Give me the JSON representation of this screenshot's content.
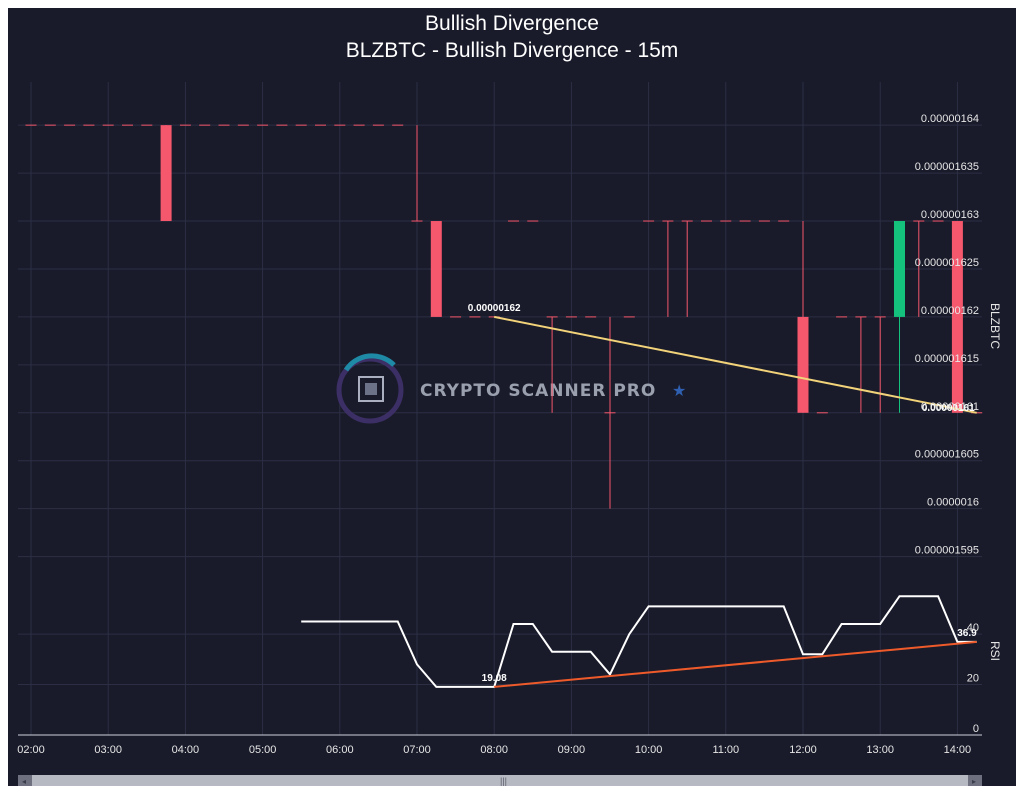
{
  "chart_data": {
    "type": "candlestick",
    "title": "Bullish Divergence",
    "subtitle": "BLZBTC - Bullish Divergence - 15m",
    "watermark": "CRYPTO SCANNER PRO",
    "x_ticks": [
      "02:00",
      "03:00",
      "04:00",
      "05:00",
      "06:00",
      "07:00",
      "08:00",
      "09:00",
      "10:00",
      "11:00",
      "12:00",
      "13:00",
      "14:00"
    ],
    "price_axis": {
      "label": "BLZBTC",
      "ylim": [
        1.5935e-06,
        1.6445e-06
      ],
      "ticks": [
        "0.000001595",
        "0.0000016",
        "0.000001605",
        "0.00000161",
        "0.000001615",
        "0.00000162",
        "0.000001625",
        "0.00000163",
        "0.000001635",
        "0.00000164"
      ]
    },
    "rsi_axis": {
      "label": "RSI",
      "ylim": [
        0,
        65
      ],
      "ticks": [
        "0",
        "20",
        "40"
      ]
    },
    "candles": [
      {
        "t": "02:00",
        "o": 1.64e-06,
        "h": 1.64e-06,
        "l": 1.64e-06,
        "c": 1.64e-06
      },
      {
        "t": "02:15",
        "o": 1.64e-06,
        "h": 1.64e-06,
        "l": 1.64e-06,
        "c": 1.64e-06
      },
      {
        "t": "02:30",
        "o": 1.64e-06,
        "h": 1.64e-06,
        "l": 1.64e-06,
        "c": 1.64e-06
      },
      {
        "t": "02:45",
        "o": 1.64e-06,
        "h": 1.64e-06,
        "l": 1.64e-06,
        "c": 1.64e-06
      },
      {
        "t": "03:00",
        "o": 1.64e-06,
        "h": 1.64e-06,
        "l": 1.64e-06,
        "c": 1.64e-06
      },
      {
        "t": "03:15",
        "o": 1.64e-06,
        "h": 1.64e-06,
        "l": 1.64e-06,
        "c": 1.64e-06
      },
      {
        "t": "03:30",
        "o": 1.64e-06,
        "h": 1.64e-06,
        "l": 1.64e-06,
        "c": 1.64e-06
      },
      {
        "t": "03:45",
        "o": 1.64e-06,
        "h": 1.64e-06,
        "l": 1.63e-06,
        "c": 1.63e-06
      },
      {
        "t": "04:00",
        "o": 1.64e-06,
        "h": 1.64e-06,
        "l": 1.64e-06,
        "c": 1.64e-06
      },
      {
        "t": "04:15",
        "o": 1.64e-06,
        "h": 1.64e-06,
        "l": 1.64e-06,
        "c": 1.64e-06
      },
      {
        "t": "04:30",
        "o": 1.64e-06,
        "h": 1.64e-06,
        "l": 1.64e-06,
        "c": 1.64e-06
      },
      {
        "t": "04:45",
        "o": 1.64e-06,
        "h": 1.64e-06,
        "l": 1.64e-06,
        "c": 1.64e-06
      },
      {
        "t": "05:00",
        "o": 1.64e-06,
        "h": 1.64e-06,
        "l": 1.64e-06,
        "c": 1.64e-06
      },
      {
        "t": "05:15",
        "o": 1.64e-06,
        "h": 1.64e-06,
        "l": 1.64e-06,
        "c": 1.64e-06
      },
      {
        "t": "05:30",
        "o": 1.64e-06,
        "h": 1.64e-06,
        "l": 1.64e-06,
        "c": 1.64e-06
      },
      {
        "t": "05:45",
        "o": 1.64e-06,
        "h": 1.64e-06,
        "l": 1.64e-06,
        "c": 1.64e-06
      },
      {
        "t": "06:00",
        "o": 1.64e-06,
        "h": 1.64e-06,
        "l": 1.64e-06,
        "c": 1.64e-06
      },
      {
        "t": "06:15",
        "o": 1.64e-06,
        "h": 1.64e-06,
        "l": 1.64e-06,
        "c": 1.64e-06
      },
      {
        "t": "06:30",
        "o": 1.64e-06,
        "h": 1.64e-06,
        "l": 1.64e-06,
        "c": 1.64e-06
      },
      {
        "t": "06:45",
        "o": 1.64e-06,
        "h": 1.64e-06,
        "l": 1.64e-06,
        "c": 1.64e-06
      },
      {
        "t": "07:00",
        "o": 1.63e-06,
        "h": 1.64e-06,
        "l": 1.63e-06,
        "c": 1.63e-06
      },
      {
        "t": "07:15",
        "o": 1.63e-06,
        "h": 1.63e-06,
        "l": 1.62e-06,
        "c": 1.62e-06
      },
      {
        "t": "07:30",
        "o": 1.62e-06,
        "h": 1.62e-06,
        "l": 1.62e-06,
        "c": 1.62e-06
      },
      {
        "t": "07:45",
        "o": 1.62e-06,
        "h": 1.62e-06,
        "l": 1.62e-06,
        "c": 1.62e-06
      },
      {
        "t": "08:00",
        "o": 1.62e-06,
        "h": 1.62e-06,
        "l": 1.62e-06,
        "c": 1.62e-06
      },
      {
        "t": "08:15",
        "o": 1.63e-06,
        "h": 1.63e-06,
        "l": 1.63e-06,
        "c": 1.63e-06
      },
      {
        "t": "08:30",
        "o": 1.63e-06,
        "h": 1.63e-06,
        "l": 1.63e-06,
        "c": 1.63e-06
      },
      {
        "t": "08:45",
        "o": 1.62e-06,
        "h": 1.62e-06,
        "l": 1.61e-06,
        "c": 1.62e-06
      },
      {
        "t": "09:00",
        "o": 1.62e-06,
        "h": 1.62e-06,
        "l": 1.62e-06,
        "c": 1.62e-06
      },
      {
        "t": "09:15",
        "o": 1.62e-06,
        "h": 1.62e-06,
        "l": 1.62e-06,
        "c": 1.62e-06
      },
      {
        "t": "09:30",
        "o": 1.61e-06,
        "h": 1.62e-06,
        "l": 1.6e-06,
        "c": 1.61e-06
      },
      {
        "t": "09:45",
        "o": 1.62e-06,
        "h": 1.62e-06,
        "l": 1.62e-06,
        "c": 1.62e-06
      },
      {
        "t": "10:00",
        "o": 1.63e-06,
        "h": 1.63e-06,
        "l": 1.63e-06,
        "c": 1.63e-06
      },
      {
        "t": "10:15",
        "o": 1.63e-06,
        "h": 1.63e-06,
        "l": 1.62e-06,
        "c": 1.63e-06
      },
      {
        "t": "10:30",
        "o": 1.63e-06,
        "h": 1.63e-06,
        "l": 1.62e-06,
        "c": 1.63e-06
      },
      {
        "t": "10:45",
        "o": 1.63e-06,
        "h": 1.63e-06,
        "l": 1.63e-06,
        "c": 1.63e-06
      },
      {
        "t": "11:00",
        "o": 1.63e-06,
        "h": 1.63e-06,
        "l": 1.63e-06,
        "c": 1.63e-06
      },
      {
        "t": "11:15",
        "o": 1.63e-06,
        "h": 1.63e-06,
        "l": 1.63e-06,
        "c": 1.63e-06
      },
      {
        "t": "11:30",
        "o": 1.63e-06,
        "h": 1.63e-06,
        "l": 1.63e-06,
        "c": 1.63e-06
      },
      {
        "t": "11:45",
        "o": 1.63e-06,
        "h": 1.63e-06,
        "l": 1.63e-06,
        "c": 1.63e-06
      },
      {
        "t": "12:00",
        "o": 1.62e-06,
        "h": 1.63e-06,
        "l": 1.61e-06,
        "c": 1.61e-06
      },
      {
        "t": "12:15",
        "o": 1.61e-06,
        "h": 1.61e-06,
        "l": 1.61e-06,
        "c": 1.61e-06
      },
      {
        "t": "12:30",
        "o": 1.62e-06,
        "h": 1.62e-06,
        "l": 1.62e-06,
        "c": 1.62e-06
      },
      {
        "t": "12:45",
        "o": 1.62e-06,
        "h": 1.62e-06,
        "l": 1.61e-06,
        "c": 1.62e-06
      },
      {
        "t": "13:00",
        "o": 1.62e-06,
        "h": 1.62e-06,
        "l": 1.61e-06,
        "c": 1.62e-06
      },
      {
        "t": "13:15",
        "o": 1.62e-06,
        "h": 1.63e-06,
        "l": 1.61e-06,
        "c": 1.63e-06
      },
      {
        "t": "13:30",
        "o": 1.63e-06,
        "h": 1.63e-06,
        "l": 1.62e-06,
        "c": 1.63e-06
      },
      {
        "t": "13:45",
        "o": 1.63e-06,
        "h": 1.63e-06,
        "l": 1.63e-06,
        "c": 1.63e-06
      },
      {
        "t": "14:00",
        "o": 1.63e-06,
        "h": 1.63e-06,
        "l": 1.61e-06,
        "c": 1.61e-06
      },
      {
        "t": "14:15",
        "o": 1.61e-06,
        "h": 1.61e-06,
        "l": 1.61e-06,
        "c": 1.61e-06
      }
    ],
    "rsi": [
      {
        "t": "05:30",
        "v": 45
      },
      {
        "t": "05:45",
        "v": 45
      },
      {
        "t": "06:00",
        "v": 45
      },
      {
        "t": "06:15",
        "v": 45
      },
      {
        "t": "06:30",
        "v": 45
      },
      {
        "t": "06:45",
        "v": 45
      },
      {
        "t": "07:00",
        "v": 28
      },
      {
        "t": "07:15",
        "v": 19.08
      },
      {
        "t": "07:30",
        "v": 19.08
      },
      {
        "t": "07:45",
        "v": 19.08
      },
      {
        "t": "08:00",
        "v": 19.08
      },
      {
        "t": "08:15",
        "v": 44
      },
      {
        "t": "08:30",
        "v": 44
      },
      {
        "t": "08:45",
        "v": 33
      },
      {
        "t": "09:00",
        "v": 33
      },
      {
        "t": "09:15",
        "v": 33
      },
      {
        "t": "09:30",
        "v": 24
      },
      {
        "t": "09:45",
        "v": 40
      },
      {
        "t": "10:00",
        "v": 51
      },
      {
        "t": "10:15",
        "v": 51
      },
      {
        "t": "10:30",
        "v": 51
      },
      {
        "t": "10:45",
        "v": 51
      },
      {
        "t": "11:00",
        "v": 51
      },
      {
        "t": "11:15",
        "v": 51
      },
      {
        "t": "11:30",
        "v": 51
      },
      {
        "t": "11:45",
        "v": 51
      },
      {
        "t": "12:00",
        "v": 32
      },
      {
        "t": "12:15",
        "v": 32
      },
      {
        "t": "12:30",
        "v": 44
      },
      {
        "t": "12:45",
        "v": 44
      },
      {
        "t": "13:00",
        "v": 44
      },
      {
        "t": "13:15",
        "v": 55
      },
      {
        "t": "13:30",
        "v": 55
      },
      {
        "t": "13:45",
        "v": 55
      },
      {
        "t": "14:00",
        "v": 36.9
      },
      {
        "t": "14:15",
        "v": 36.9
      }
    ],
    "price_divergence": {
      "from": {
        "t": "08:00",
        "v": 1.62e-06
      },
      "to": {
        "t": "14:15",
        "v": 1.61e-06
      },
      "color": "#f2d37a",
      "from_label": "0.00000162",
      "to_label": "0.00000161"
    },
    "rsi_divergence": {
      "from": {
        "t": "08:00",
        "v": 19.08
      },
      "to": {
        "t": "14:15",
        "v": 36.9
      },
      "color": "#ef5a2b",
      "from_label": "19.08",
      "to_label": "36.9"
    },
    "colors": {
      "up": "#14c27d",
      "down": "#f5576c",
      "rsi_line": "#ffffff",
      "background": "#191b2a",
      "grid": "#2c2f44"
    },
    "grid": true
  }
}
